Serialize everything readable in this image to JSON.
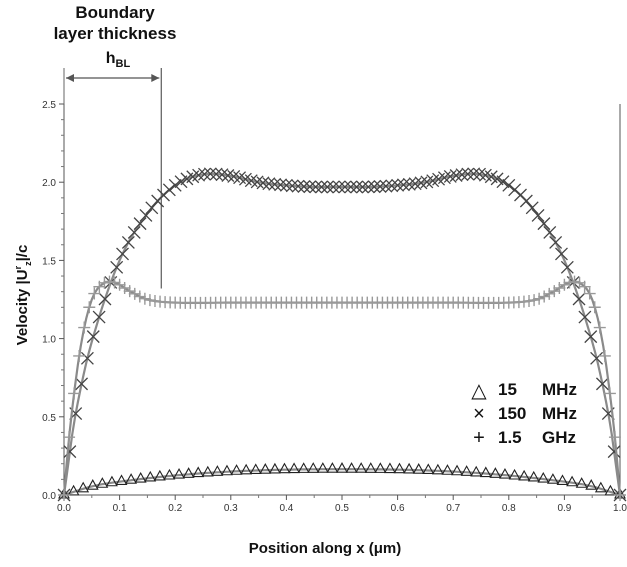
{
  "annotation": {
    "title_line1": "Boundary",
    "title_line2": "layer thickness",
    "symbol_main": "h",
    "symbol_sub": "BL"
  },
  "chart_data": {
    "type": "scatter",
    "xlabel": "Position along x (μm)",
    "ylabel": {
      "prefix": "Velocity |U",
      "sup": "r",
      "sub": "z",
      "suffix": "|/c"
    },
    "xlim": [
      0,
      1
    ],
    "ylim": [
      0,
      2.5
    ],
    "xticks": [
      "0.0",
      "0.1",
      "0.2",
      "0.3",
      "0.4",
      "0.5",
      "0.6",
      "0.7",
      "0.8",
      "0.9",
      "1.0"
    ],
    "yticks": [
      "0.0",
      "0.5",
      "1.0",
      "1.5",
      "2.0",
      "2.5"
    ],
    "grid": false,
    "legend": "lower-right",
    "boundary_layer_x": 0.175,
    "series": [
      {
        "name_num": "15",
        "name_unit": "MHz",
        "marker": "triangle",
        "marker_glyph": "△",
        "color": "#222222",
        "x": [
          0,
          0.05,
          0.1,
          0.2,
          0.3,
          0.4,
          0.5,
          0.6,
          0.7,
          0.8,
          0.9,
          0.95,
          1
        ],
        "y": [
          0,
          0.055,
          0.085,
          0.125,
          0.15,
          0.162,
          0.165,
          0.162,
          0.15,
          0.125,
          0.085,
          0.055,
          0
        ]
      },
      {
        "name_num": "150",
        "name_unit": "MHz",
        "marker": "x",
        "marker_glyph": "×",
        "color": "#444444",
        "x": [
          0,
          0.02,
          0.05,
          0.1,
          0.15,
          0.2,
          0.25,
          0.3,
          0.35,
          0.4,
          0.45,
          0.5,
          0.55,
          0.6,
          0.65,
          0.7,
          0.75,
          0.8,
          0.85,
          0.9,
          0.95,
          0.98,
          1
        ],
        "y": [
          0,
          0.5,
          0.98,
          1.5,
          1.8,
          1.98,
          2.05,
          2.04,
          2.0,
          1.98,
          1.97,
          1.97,
          1.97,
          1.98,
          2.0,
          2.04,
          2.05,
          1.98,
          1.8,
          1.5,
          0.98,
          0.5,
          0
        ]
      },
      {
        "name_num": "1.5",
        "name_unit": "GHz",
        "marker": "plus",
        "marker_glyph": "+",
        "color": "#999999",
        "x": [
          0,
          0.01,
          0.03,
          0.05,
          0.07,
          0.09,
          0.12,
          0.15,
          0.2,
          0.3,
          0.4,
          0.5,
          0.6,
          0.7,
          0.8,
          0.85,
          0.88,
          0.91,
          0.93,
          0.95,
          0.97,
          0.99,
          1
        ],
        "y": [
          0,
          0.4,
          0.95,
          1.25,
          1.35,
          1.36,
          1.3,
          1.25,
          1.23,
          1.23,
          1.23,
          1.23,
          1.23,
          1.23,
          1.23,
          1.25,
          1.3,
          1.36,
          1.35,
          1.25,
          0.95,
          0.4,
          0
        ]
      }
    ]
  }
}
